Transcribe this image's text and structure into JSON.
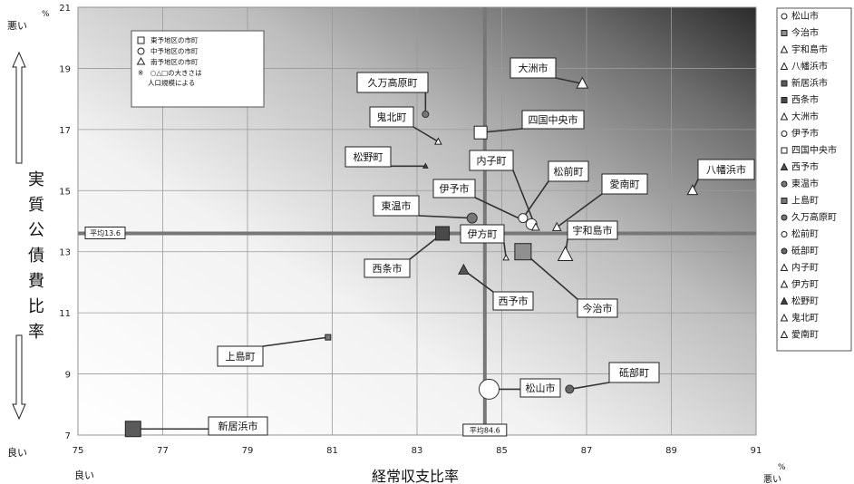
{
  "chart_data": {
    "type": "scatter",
    "title": "",
    "xlabel": "経常収支比率",
    "ylabel": "実質公債費比率",
    "xlim": [
      75,
      91
    ],
    "ylim": [
      7,
      21
    ],
    "xticks": [
      "75",
      "77",
      "79",
      "81",
      "83",
      "85",
      "87",
      "89",
      "91"
    ],
    "yticks": [
      "7",
      "9",
      "11",
      "13",
      "15",
      "17",
      "19",
      "21"
    ],
    "x_unit": "%",
    "y_unit": "%",
    "x_good": "良い",
    "x_bad": "悪い",
    "y_good": "良い",
    "y_bad": "悪い",
    "grid": true,
    "legend_position": "right",
    "averages": {
      "x": 84.6,
      "y": 13.6,
      "x_label": "平均84.6",
      "y_label": "平均13.6"
    },
    "inset_legend": [
      {
        "marker": "square",
        "text": "東予地区の市町"
      },
      {
        "marker": "circle",
        "text": "中予地区の市町"
      },
      {
        "marker": "triangle",
        "text": "南予地区の市町"
      },
      {
        "marker": "note",
        "text": "※　○△□の大きさは人口規模による"
      }
    ],
    "series": [
      {
        "name": "松山市",
        "x": 84.7,
        "y": 8.5,
        "shape": "circle",
        "fill": "#ffffff",
        "size": 22,
        "label": "松山市"
      },
      {
        "name": "今治市",
        "x": 85.5,
        "y": 13.0,
        "shape": "square",
        "fill": "#8f8f8f",
        "size": 18,
        "label": "今治市"
      },
      {
        "name": "宇和島市",
        "x": 86.5,
        "y": 12.9,
        "shape": "triangle",
        "fill": "#ffffff",
        "size": 16,
        "label": "宇和島市"
      },
      {
        "name": "八幡浜市",
        "x": 89.5,
        "y": 15.0,
        "shape": "triangle",
        "fill": "#ffffff",
        "size": 11,
        "label": "八幡浜市"
      },
      {
        "name": "新居浜市",
        "x": 76.3,
        "y": 7.2,
        "shape": "square",
        "fill": "#5a5a5a",
        "size": 17,
        "label": "新居浜市"
      },
      {
        "name": "西条市",
        "x": 83.6,
        "y": 13.6,
        "shape": "square",
        "fill": "#4a4a4a",
        "size": 15,
        "label": "西条市"
      },
      {
        "name": "大洲市",
        "x": 86.9,
        "y": 18.5,
        "shape": "triangle",
        "fill": "#ffffff",
        "size": 12,
        "label": "大洲市"
      },
      {
        "name": "伊予市",
        "x": 85.7,
        "y": 13.9,
        "shape": "circle",
        "fill": "#ffffff",
        "size": 12,
        "label": "伊予市"
      },
      {
        "name": "四国中央市",
        "x": 84.5,
        "y": 16.9,
        "shape": "square",
        "fill": "#ffffff",
        "size": 14,
        "label": "四国中央市"
      },
      {
        "name": "西予市",
        "x": 84.1,
        "y": 12.4,
        "shape": "triangle",
        "fill": "#555555",
        "size": 11,
        "label": "西予市"
      },
      {
        "name": "東温市",
        "x": 84.3,
        "y": 14.1,
        "shape": "circle",
        "fill": "#777777",
        "size": 11,
        "label": "東温市"
      },
      {
        "name": "上島町",
        "x": 80.9,
        "y": 10.2,
        "shape": "square",
        "fill": "#777777",
        "size": 6,
        "label": "上島町"
      },
      {
        "name": "久万高原町",
        "x": 83.2,
        "y": 17.5,
        "shape": "circle",
        "fill": "#777777",
        "size": 7,
        "label": "久万高原町"
      },
      {
        "name": "松前町",
        "x": 85.5,
        "y": 14.1,
        "shape": "circle",
        "fill": "#ffffff",
        "size": 10,
        "label": "松前町"
      },
      {
        "name": "砥部町",
        "x": 86.6,
        "y": 8.5,
        "shape": "circle",
        "fill": "#666666",
        "size": 9,
        "label": "砥部町"
      },
      {
        "name": "内子町",
        "x": 85.8,
        "y": 13.8,
        "shape": "triangle",
        "fill": "#ffffff",
        "size": 8,
        "label": "内子町"
      },
      {
        "name": "伊方町",
        "x": 85.1,
        "y": 12.8,
        "shape": "triangle",
        "fill": "#ffffff",
        "size": 6,
        "label": "伊方町"
      },
      {
        "name": "松野町",
        "x": 83.2,
        "y": 15.8,
        "shape": "triangle",
        "fill": "#444444",
        "size": 5,
        "label": "松野町"
      },
      {
        "name": "鬼北町",
        "x": 83.5,
        "y": 16.6,
        "shape": "triangle",
        "fill": "#ffffff",
        "size": 7,
        "label": "鬼北町"
      },
      {
        "name": "愛南町",
        "x": 86.3,
        "y": 13.8,
        "shape": "triangle",
        "fill": "#ffffff",
        "size": 9,
        "label": "愛南町"
      }
    ]
  }
}
